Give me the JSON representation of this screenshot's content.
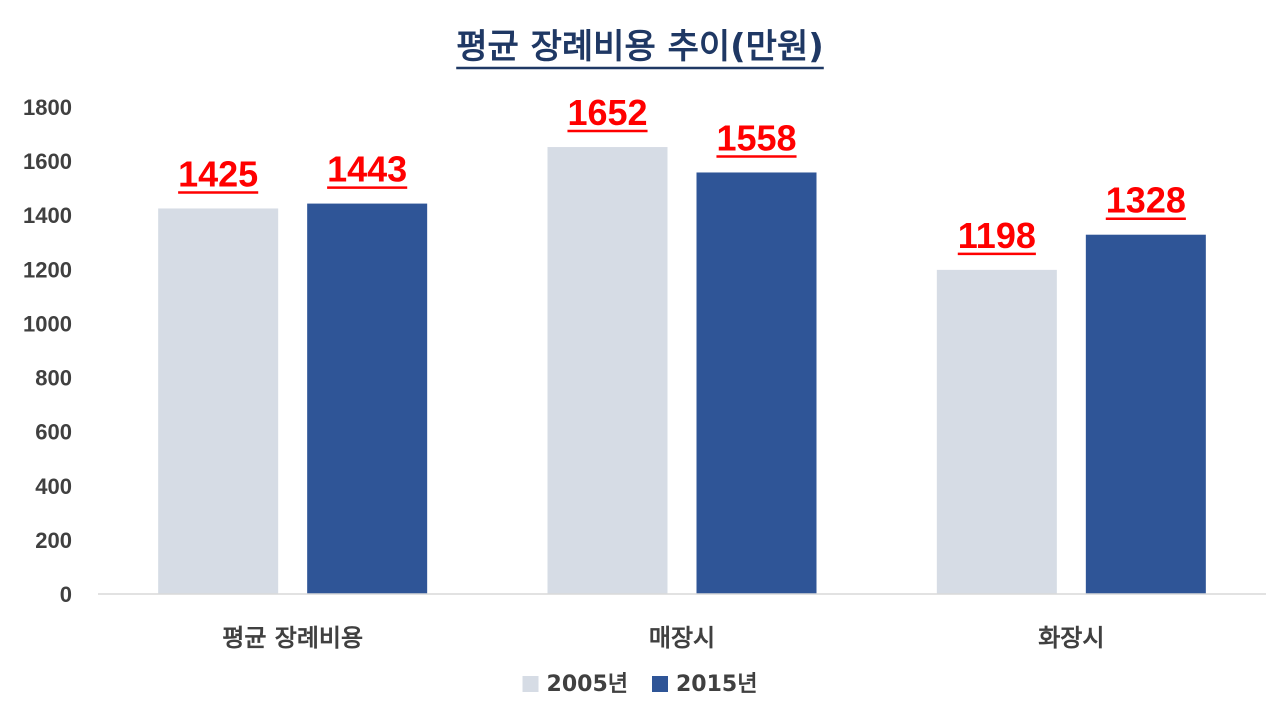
{
  "chart_data": {
    "type": "bar",
    "title": "평균 장례비용 추이(만원)",
    "categories": [
      "평균 장례비용",
      "매장시",
      "화장시"
    ],
    "series": [
      {
        "name": "2005년",
        "values": [
          1425,
          1652,
          1198
        ],
        "color": "#d6dce5"
      },
      {
        "name": "2015년",
        "values": [
          1443,
          1558,
          1328
        ],
        "color": "#2f5597"
      }
    ],
    "ylim": [
      0,
      1800
    ],
    "yticks": [
      0,
      200,
      400,
      600,
      800,
      1000,
      1200,
      1400,
      1600,
      1800
    ],
    "grid": false,
    "legend": "bottom-center",
    "label_color": "#ff0000",
    "title_color": "#1f3864"
  }
}
